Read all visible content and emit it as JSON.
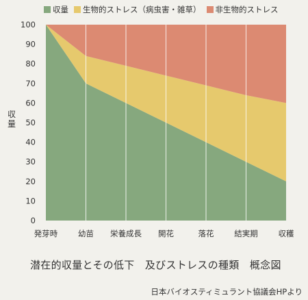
{
  "chart_data": {
    "type": "area",
    "stacked": true,
    "title": "潜在的収量とその低下　及びストレスの種類　概念図",
    "ylabel": "収量",
    "xlabel": "",
    "source": "日本バイオスティミュラント協議会HPより",
    "categories": [
      "発芽時",
      "幼苗",
      "栄養成長",
      "開花",
      "落花",
      "結実期",
      "収穫"
    ],
    "ylim": [
      0,
      100
    ],
    "yticks": [
      0,
      10,
      20,
      30,
      40,
      50,
      60,
      70,
      80,
      90,
      100
    ],
    "grid": "vertical",
    "legend_position": "top",
    "series": [
      {
        "name": "収量",
        "color": "#86a87e",
        "values": [
          100,
          70,
          60,
          50,
          40,
          30,
          20
        ]
      },
      {
        "name": "生物的ストレス（病虫害・雑草）",
        "color": "#e6c96d",
        "values": [
          0,
          14,
          19,
          24,
          29,
          34,
          40
        ]
      },
      {
        "name": "非生物的ストレス",
        "color": "#dc8a72",
        "values": [
          0,
          16,
          21,
          26,
          31,
          36,
          40
        ]
      }
    ]
  }
}
